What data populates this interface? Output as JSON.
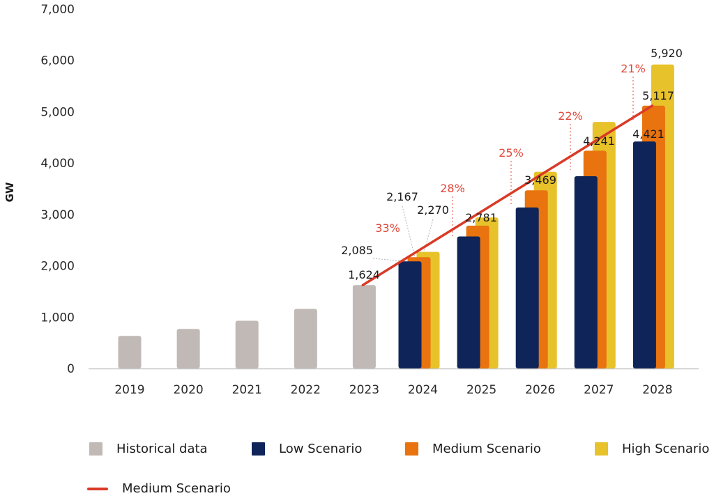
{
  "chart_data": {
    "type": "bar",
    "title": "",
    "xlabel": "",
    "ylabel": "GW",
    "ylim": [
      0,
      7000
    ],
    "yticks": [
      0,
      1000,
      2000,
      3000,
      4000,
      5000,
      6000,
      7000
    ],
    "ytick_labels": [
      "0",
      "1,000",
      "2,000",
      "3,000",
      "4,000",
      "5,000",
      "6,000",
      "7,000"
    ],
    "grid": false,
    "categories": [
      "2019",
      "2020",
      "2021",
      "2022",
      "2023",
      "2024",
      "2025",
      "2026",
      "2027",
      "2028"
    ],
    "series": [
      {
        "name": "Historical data",
        "kind": "bar",
        "color": "#c0b9b5",
        "values": [
          635,
          770,
          930,
          1160,
          1624,
          null,
          null,
          null,
          null,
          null
        ]
      },
      {
        "name": "Low Scenario",
        "kind": "bar",
        "color": "#0f2459",
        "values": [
          null,
          null,
          null,
          null,
          null,
          2085,
          2570,
          3135,
          3745,
          4421
        ]
      },
      {
        "name": "Medium Scenario",
        "kind": "bar",
        "color": "#e8730f",
        "values": [
          null,
          null,
          null,
          null,
          null,
          2167,
          2781,
          3469,
          4241,
          5117
        ]
      },
      {
        "name": "High Scenario",
        "kind": "bar",
        "color": "#e8c22a",
        "values": [
          null,
          null,
          null,
          null,
          null,
          2270,
          2940,
          3830,
          4800,
          5920
        ]
      },
      {
        "name": "Medium Scenario",
        "kind": "line",
        "color": "#d93a26",
        "values": [
          null,
          null,
          null,
          null,
          1624,
          2167,
          2781,
          3469,
          4241,
          5117
        ]
      }
    ],
    "data_labels": [
      {
        "category": "2023",
        "series": "Historical data",
        "text": "1,624"
      },
      {
        "category": "2024",
        "series": "Low Scenario",
        "text": "2,085"
      },
      {
        "category": "2024",
        "series": "Medium Scenario",
        "text": "2,167"
      },
      {
        "category": "2024",
        "series": "High Scenario",
        "text": "2,270"
      },
      {
        "category": "2025",
        "series": "Medium Scenario",
        "text": "2,781"
      },
      {
        "category": "2026",
        "series": "Medium Scenario",
        "text": "3,469"
      },
      {
        "category": "2027",
        "series": "Medium Scenario",
        "text": "4,241"
      },
      {
        "category": "2028",
        "series": "Low Scenario",
        "text": "4,421"
      },
      {
        "category": "2028",
        "series": "Medium Scenario",
        "text": "5,117"
      },
      {
        "category": "2028",
        "series": "High Scenario",
        "text": "5,920"
      }
    ],
    "growth_annotations": [
      {
        "between": [
          "2023",
          "2024"
        ],
        "text": "33%"
      },
      {
        "between": [
          "2024",
          "2025"
        ],
        "text": "28%"
      },
      {
        "between": [
          "2025",
          "2026"
        ],
        "text": "25%"
      },
      {
        "between": [
          "2026",
          "2027"
        ],
        "text": "22%"
      },
      {
        "between": [
          "2027",
          "2028"
        ],
        "text": "21%"
      }
    ],
    "legend": {
      "placement": "bottom",
      "items": [
        {
          "label": "Historical data",
          "type": "square",
          "color": "#c0b9b5"
        },
        {
          "label": "Low Scenario",
          "type": "square",
          "color": "#0f2459"
        },
        {
          "label": "Medium Scenario",
          "type": "square",
          "color": "#e8730f"
        },
        {
          "label": "High Scenario",
          "type": "square",
          "color": "#e8c22a"
        },
        {
          "label": "Medium Scenario",
          "type": "line",
          "color": "#d93a26"
        }
      ]
    }
  }
}
